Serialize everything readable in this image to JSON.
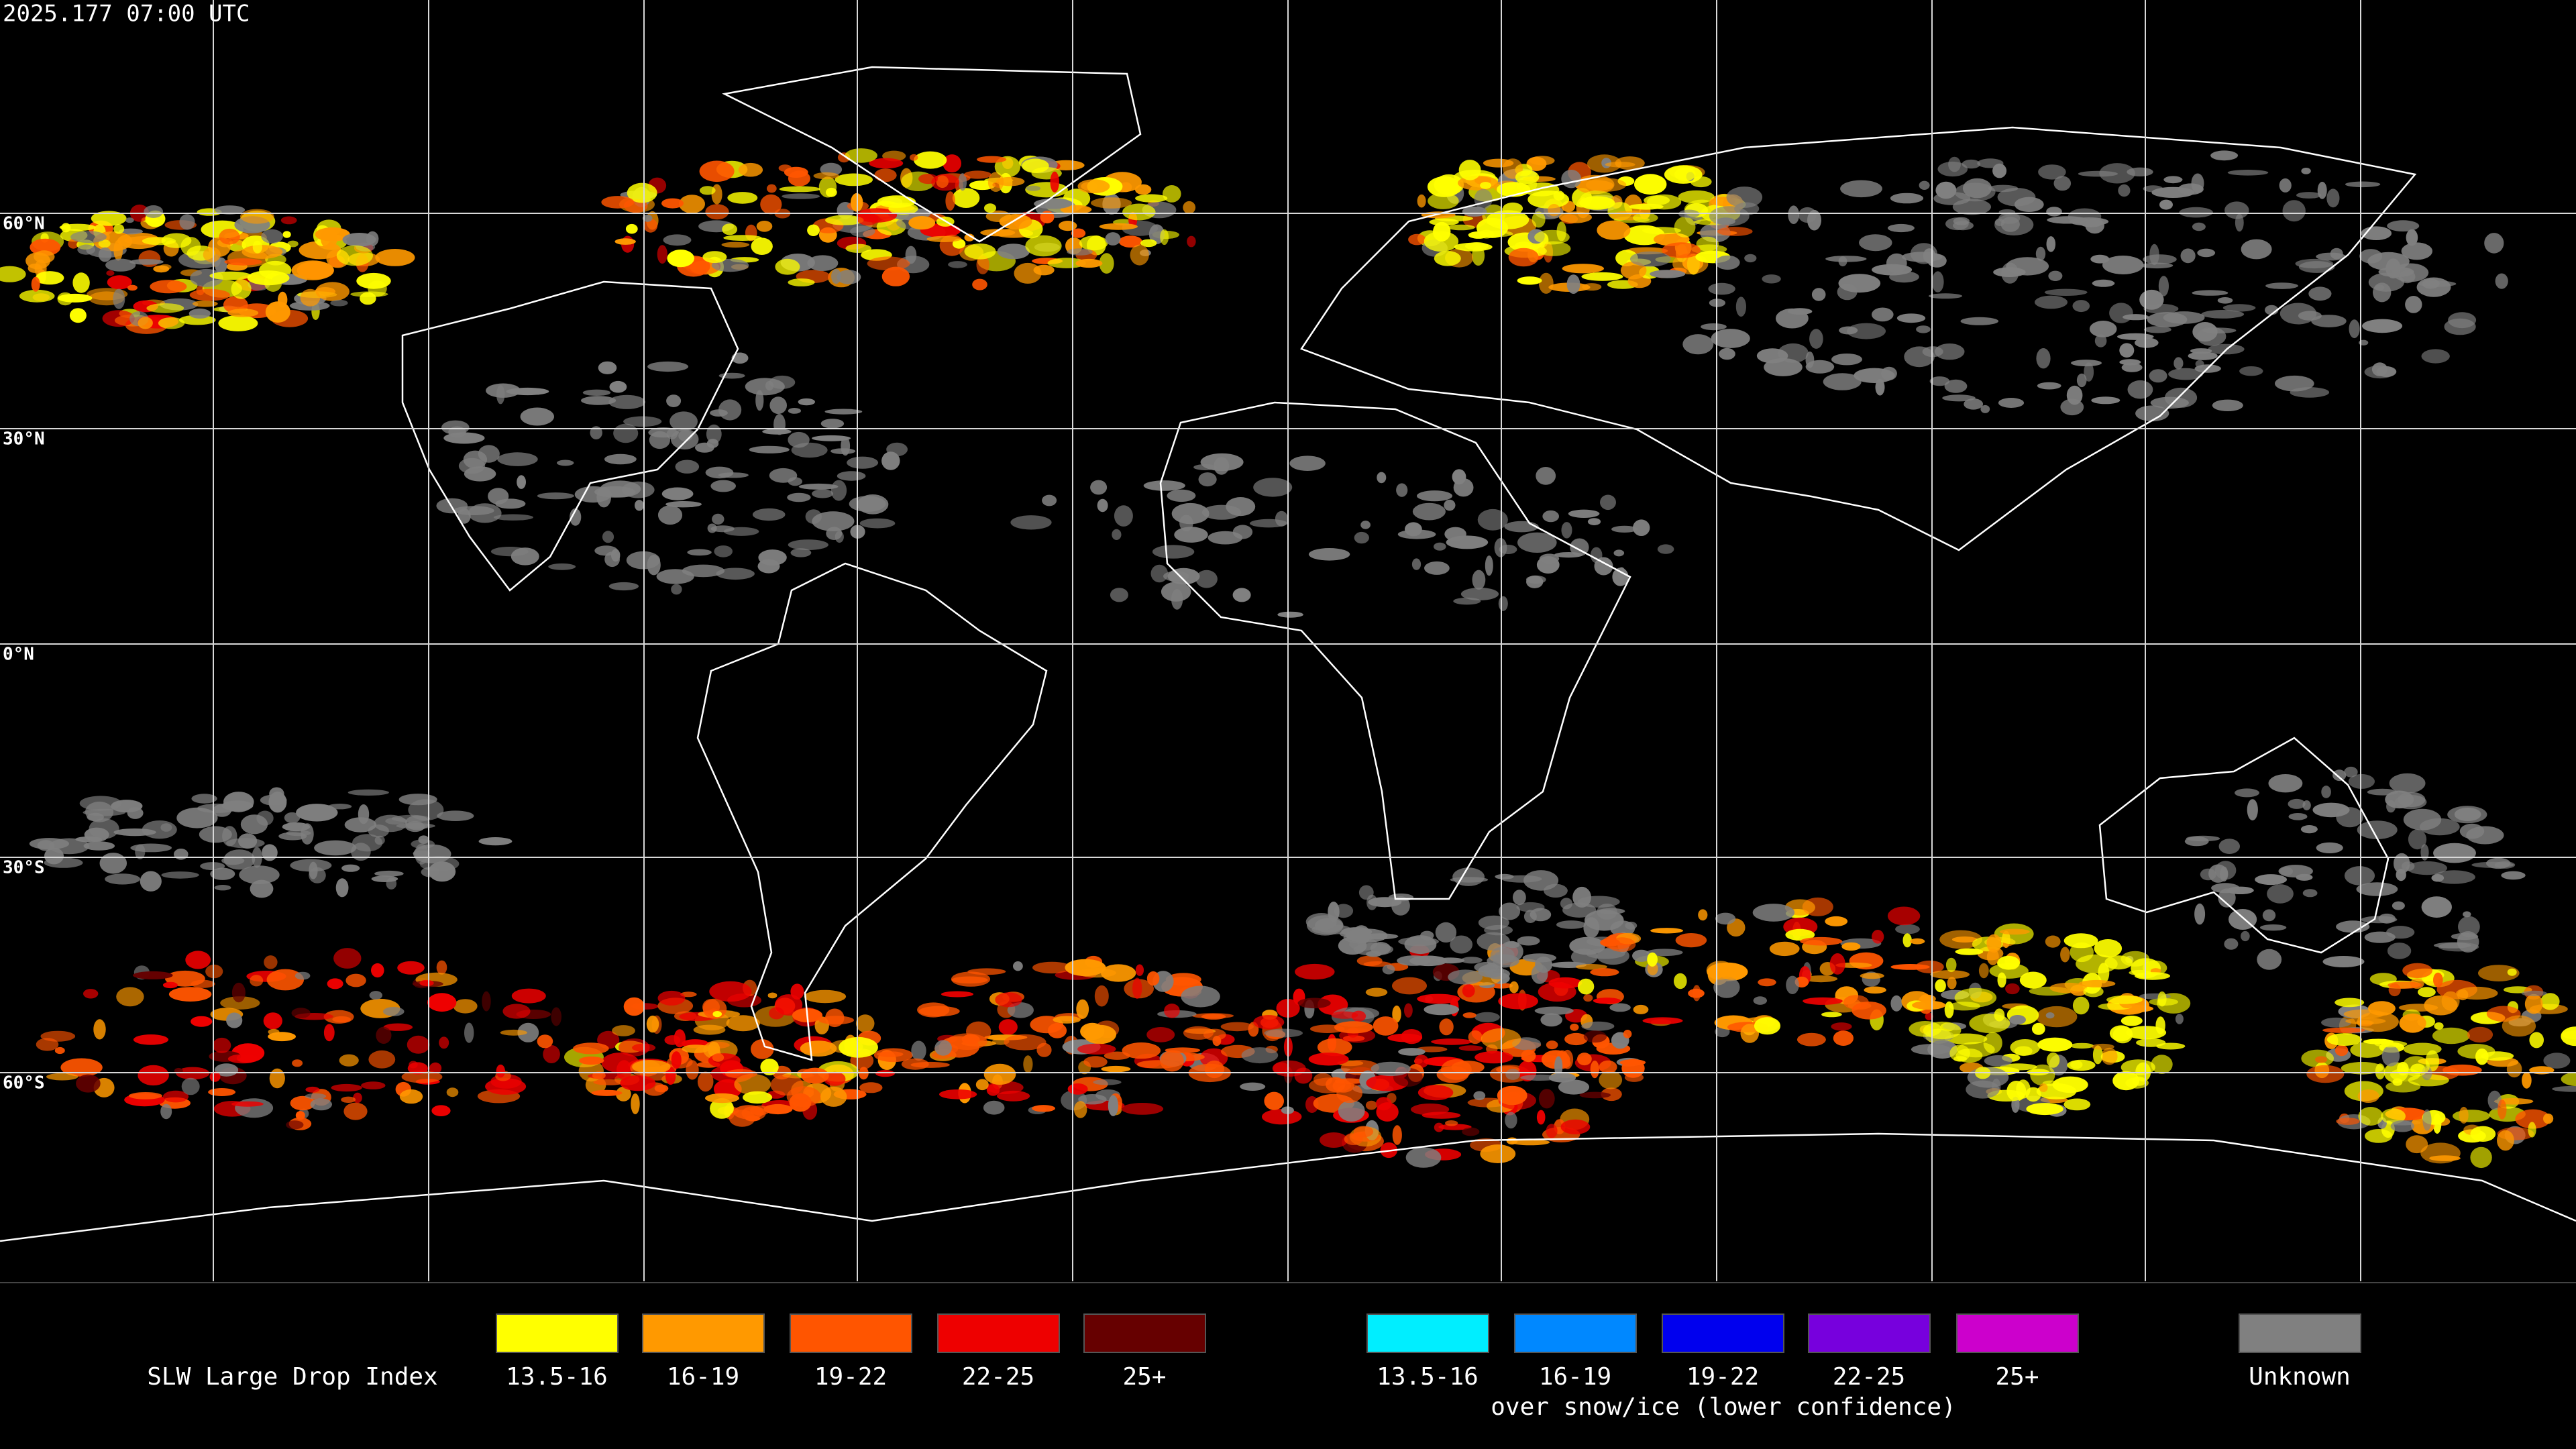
{
  "header": {
    "timestamp": "2025.177 07:00 UTC"
  },
  "map": {
    "latitude_labels": [
      "60°N",
      "30°N",
      "0°N",
      "30°S",
      "60°S"
    ]
  },
  "legend": {
    "title": "SLW Large Drop Index",
    "items": [
      {
        "label": "13.5-16",
        "color": "#ffff00"
      },
      {
        "label": "16-19",
        "color": "#ff9900"
      },
      {
        "label": "19-22",
        "color": "#ff5500"
      },
      {
        "label": "22-25",
        "color": "#ee0000"
      },
      {
        "label": "25+",
        "color": "#660000"
      }
    ],
    "snow_items": [
      {
        "label": "13.5-16",
        "color": "#00eeff"
      },
      {
        "label": "16-19",
        "color": "#0088ff"
      },
      {
        "label": "19-22",
        "color": "#0000ee"
      },
      {
        "label": "22-25",
        "color": "#7700dd"
      },
      {
        "label": "25+",
        "color": "#cc00cc"
      }
    ],
    "snow_caption": "over snow/ice (lower confidence)",
    "unknown": {
      "label": "Unknown",
      "color": "#808080"
    }
  }
}
